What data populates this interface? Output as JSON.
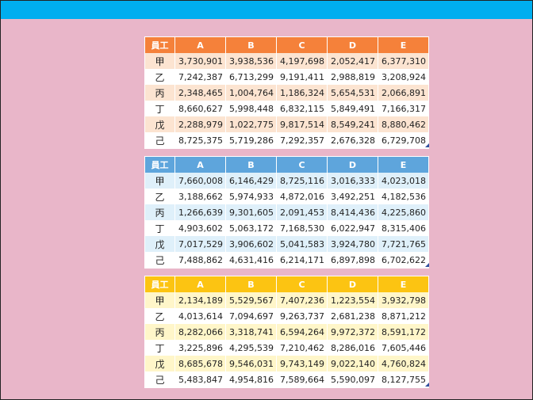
{
  "colors": {
    "background": "#e9b6c9",
    "top_bar": "#00aeef",
    "orange_header": "#f5813a",
    "blue_header": "#5ea5dc",
    "yellow_header": "#fcc412"
  },
  "tables": [
    {
      "theme": "orange",
      "headers": [
        "員工",
        "A",
        "B",
        "C",
        "D",
        "E"
      ],
      "rows": [
        [
          "甲",
          "3,730,901",
          "3,938,536",
          "4,197,698",
          "2,052,417",
          "6,377,310"
        ],
        [
          "乙",
          "7,242,387",
          "6,713,299",
          "9,191,411",
          "2,988,819",
          "3,208,924"
        ],
        [
          "丙",
          "2,348,465",
          "1,004,764",
          "1,186,324",
          "5,654,531",
          "2,066,891"
        ],
        [
          "丁",
          "8,660,627",
          "5,998,448",
          "6,832,115",
          "5,849,491",
          "7,166,317"
        ],
        [
          "戊",
          "2,288,979",
          "1,022,775",
          "9,817,514",
          "8,549,241",
          "8,880,462"
        ],
        [
          "己",
          "8,725,375",
          "5,719,286",
          "7,292,357",
          "2,676,328",
          "6,729,708"
        ]
      ]
    },
    {
      "theme": "blue",
      "headers": [
        "員工",
        "A",
        "B",
        "C",
        "D",
        "E"
      ],
      "rows": [
        [
          "甲",
          "7,660,008",
          "6,146,429",
          "8,725,116",
          "3,016,333",
          "4,023,018"
        ],
        [
          "乙",
          "3,188,662",
          "5,974,933",
          "4,872,016",
          "3,492,251",
          "4,182,536"
        ],
        [
          "丙",
          "1,266,639",
          "9,301,605",
          "2,091,453",
          "8,414,436",
          "4,225,860"
        ],
        [
          "丁",
          "4,903,602",
          "5,063,172",
          "7,168,530",
          "6,022,947",
          "8,315,406"
        ],
        [
          "戊",
          "7,017,529",
          "3,906,602",
          "5,041,583",
          "3,924,780",
          "7,721,765"
        ],
        [
          "己",
          "7,488,862",
          "4,631,416",
          "6,214,171",
          "6,897,898",
          "6,702,622"
        ]
      ]
    },
    {
      "theme": "yellow",
      "headers": [
        "員工",
        "A",
        "B",
        "C",
        "D",
        "E"
      ],
      "rows": [
        [
          "甲",
          "2,134,189",
          "5,529,567",
          "7,407,236",
          "1,223,554",
          "3,932,798"
        ],
        [
          "乙",
          "4,013,614",
          "7,094,697",
          "9,263,737",
          "2,681,238",
          "8,871,212"
        ],
        [
          "丙",
          "8,282,066",
          "3,318,741",
          "6,594,264",
          "9,972,372",
          "8,591,172"
        ],
        [
          "丁",
          "3,225,896",
          "4,295,539",
          "7,210,462",
          "8,286,016",
          "7,605,446"
        ],
        [
          "戊",
          "8,685,678",
          "9,546,031",
          "9,743,149",
          "9,022,140",
          "4,760,824"
        ],
        [
          "己",
          "5,483,847",
          "4,954,816",
          "7,589,664",
          "5,590,097",
          "8,127,755"
        ]
      ]
    }
  ]
}
